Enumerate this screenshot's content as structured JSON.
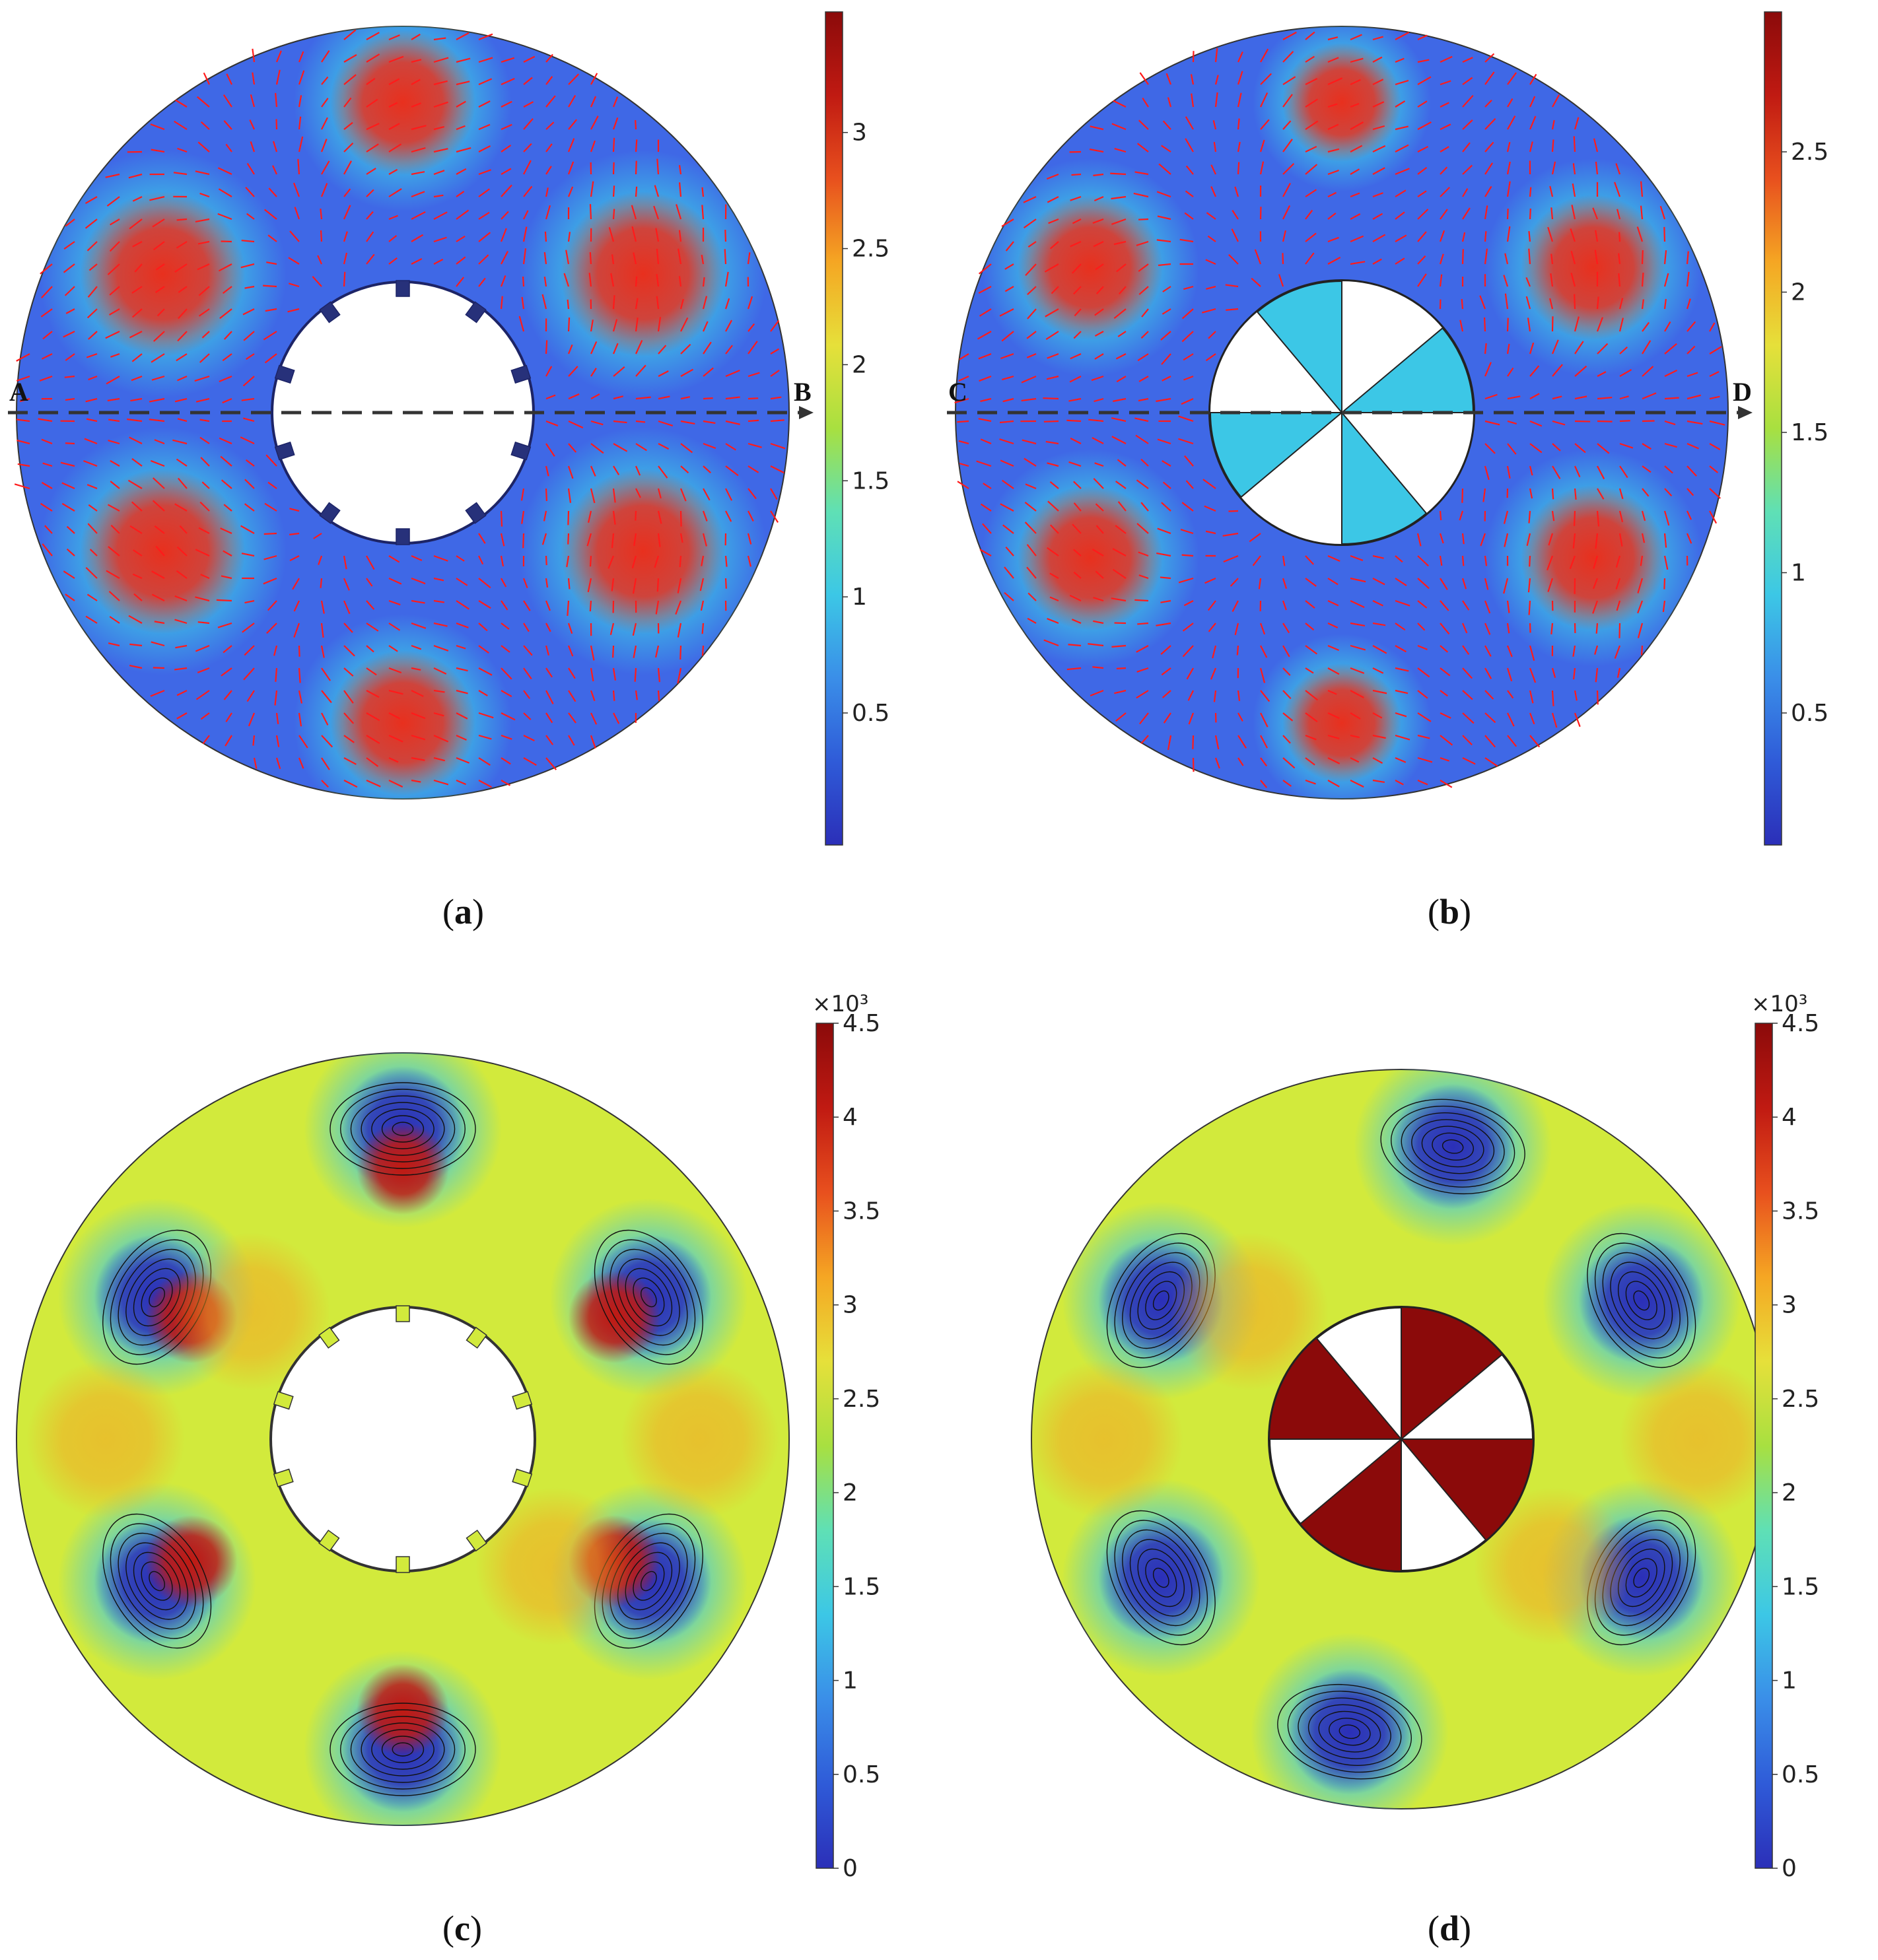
{
  "figure": {
    "panels": [
      {
        "id": "a",
        "caption_label": "a",
        "kind": "velocity",
        "inner": "slots",
        "start_point": "A",
        "end_point": "B",
        "colorbar": {
          "exponent": "",
          "ticks": [
            "0.5",
            "1",
            "1.5",
            "2",
            "2.5",
            "3"
          ]
        }
      },
      {
        "id": "b",
        "caption_label": "b",
        "kind": "velocity",
        "inner": "impeller",
        "start_point": "C",
        "end_point": "D",
        "colorbar": {
          "exponent": "",
          "ticks": [
            "0.5",
            "1",
            "1.5",
            "2",
            "2.5"
          ]
        }
      },
      {
        "id": "c",
        "caption_label": "c",
        "kind": "pressure",
        "inner": "slots",
        "start_point": "",
        "end_point": "",
        "colorbar": {
          "exponent": "×10³",
          "ticks": [
            "0",
            "0.5",
            "1",
            "1.5",
            "2",
            "2.5",
            "3",
            "3.5",
            "4",
            "4.5"
          ]
        }
      },
      {
        "id": "d",
        "caption_label": "d",
        "kind": "pressure",
        "inner": "impeller",
        "start_point": "",
        "end_point": "",
        "colorbar": {
          "exponent": "×10³",
          "ticks": [
            "0",
            "0.5",
            "1",
            "1.5",
            "2",
            "2.5",
            "3",
            "3.5",
            "4",
            "4.5"
          ]
        }
      }
    ],
    "colors": {
      "field_low": "#2b2fb8",
      "field_mid": "#a8e040",
      "field_high": "#8b0a0a",
      "arrows": "#ff1a1a",
      "velocity_background": "#3f68e6",
      "pressure_background": "#d2ea3c"
    }
  }
}
